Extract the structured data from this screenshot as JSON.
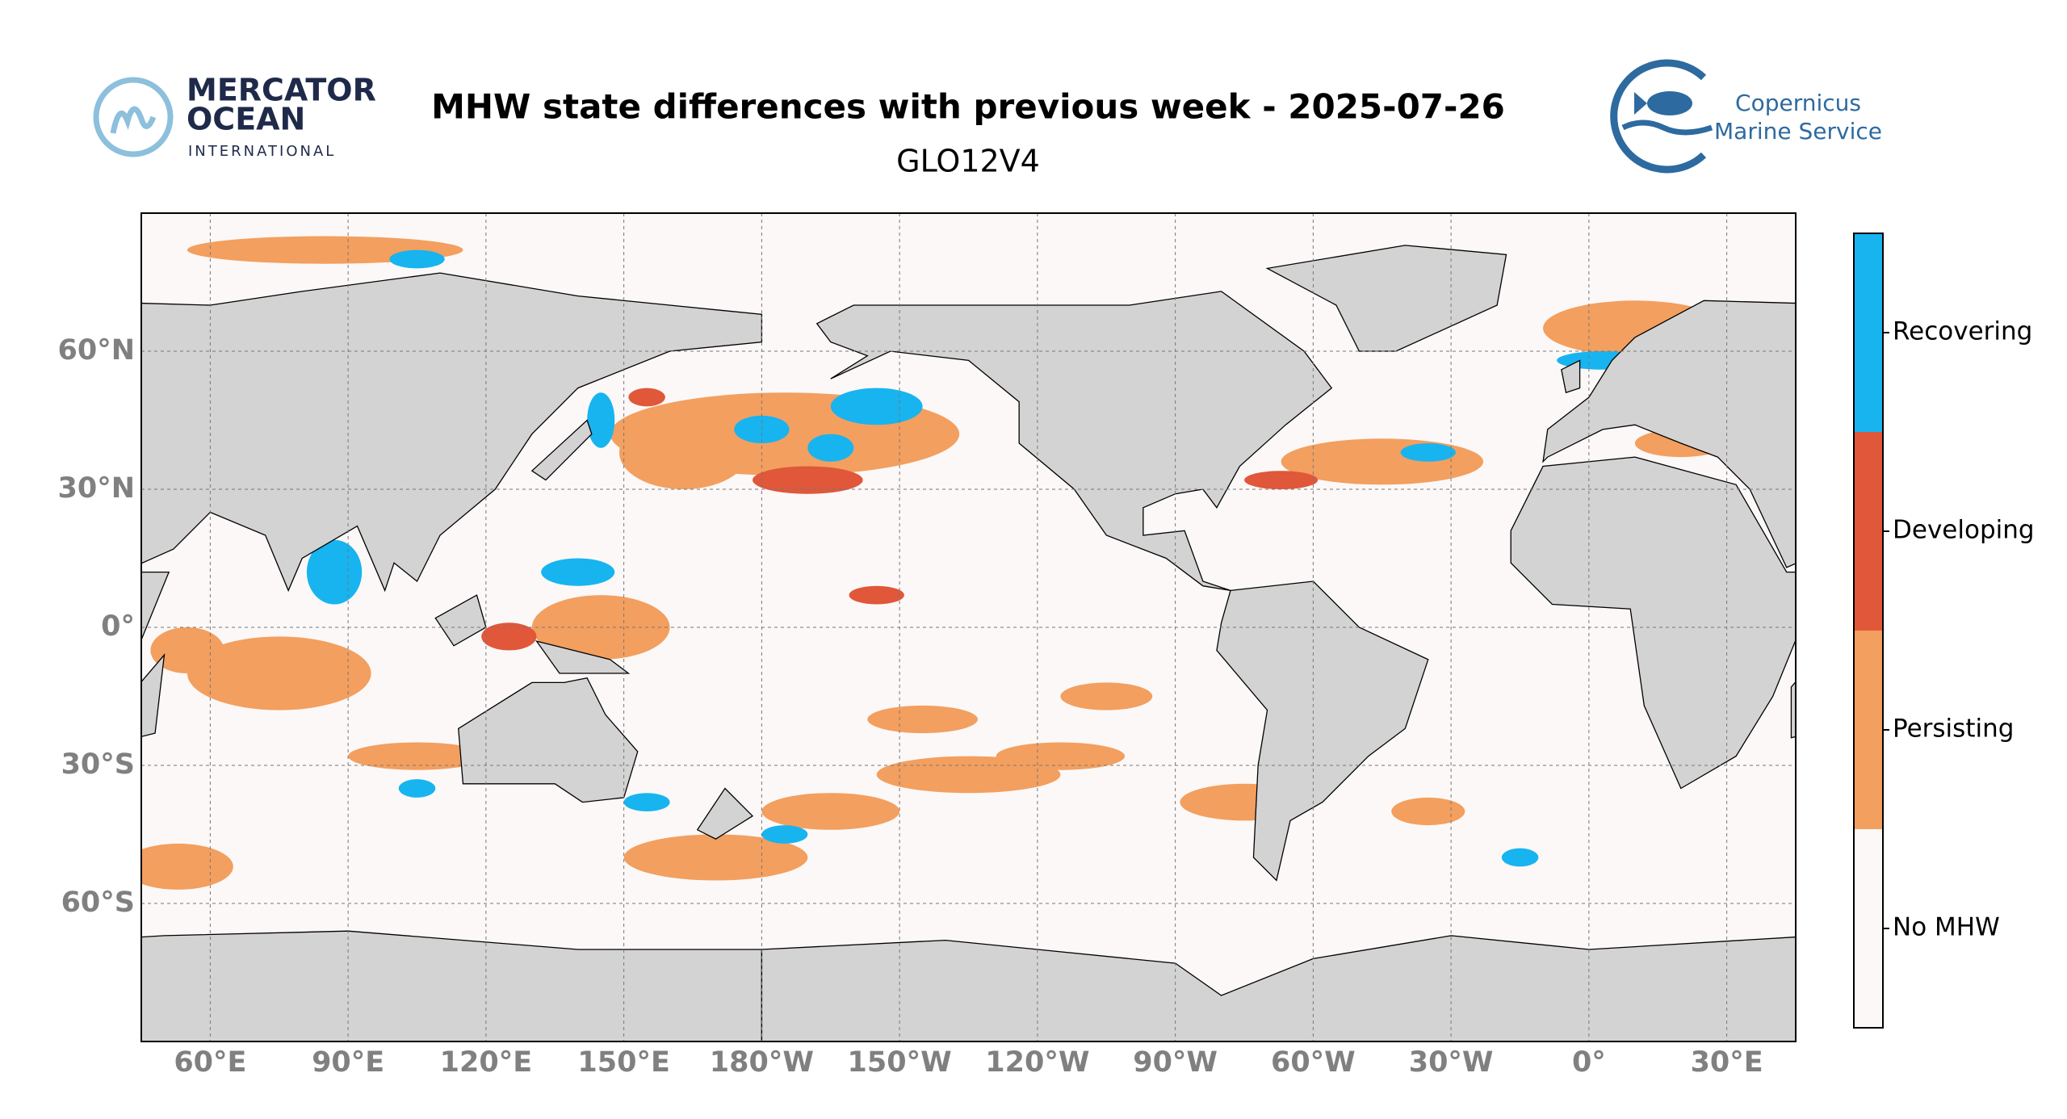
{
  "header": {
    "title": "MHW state differences with previous week - 2025-07-26",
    "subtitle": "GLO12V4"
  },
  "logos": {
    "mercator": [
      "MERCATOR",
      "OCEAN",
      "INTERNATIONAL"
    ],
    "copernicus": [
      "Copernicus",
      "Marine Service"
    ]
  },
  "map": {
    "lon_ticks": [
      "60°E",
      "90°E",
      "120°E",
      "150°E",
      "180°W",
      "150°W",
      "120°W",
      "90°W",
      "60°W",
      "30°W",
      "0°",
      "30°E"
    ],
    "lat_ticks": [
      "60°N",
      "30°N",
      "0°",
      "30°S",
      "60°S"
    ]
  },
  "legend": {
    "categories": [
      {
        "name": "Recovering",
        "color": "#17b4f0"
      },
      {
        "name": "Developing",
        "color": "#e0573a"
      },
      {
        "name": "Persisting",
        "color": "#f39f5f"
      },
      {
        "name": "No MHW",
        "color": "#fbf8f7"
      }
    ]
  }
}
